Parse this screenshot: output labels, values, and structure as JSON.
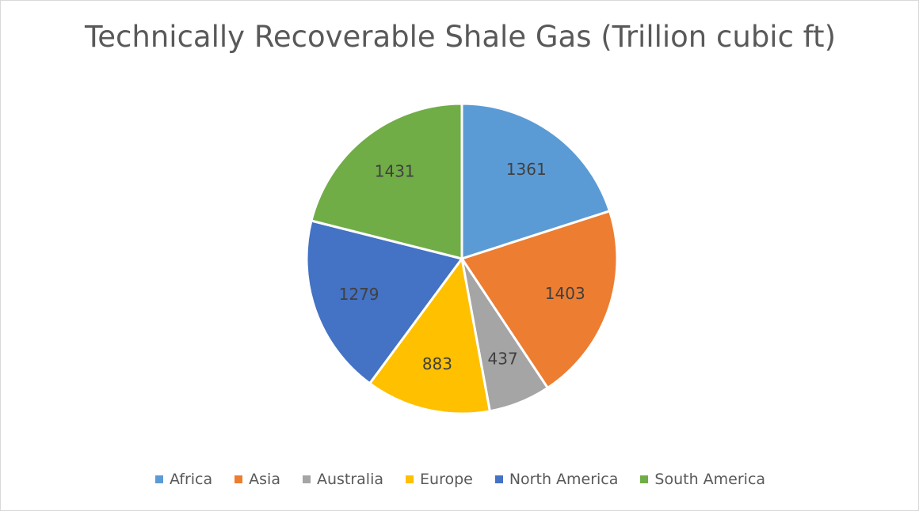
{
  "chart_data": {
    "type": "pie",
    "title": "Technically Recoverable Shale Gas (Trillion cubic ft)",
    "categories": [
      "Africa",
      "Asia",
      "Australia",
      "Europe",
      "North America",
      "South America"
    ],
    "values": [
      1361,
      1403,
      437,
      883,
      1279,
      1431
    ],
    "colors": [
      "#5b9bd5",
      "#ed7d31",
      "#a5a5a5",
      "#ffc000",
      "#4472c4",
      "#70ad47"
    ],
    "data_labels": [
      "1361",
      "1403",
      "437",
      "883",
      "1279",
      "1431"
    ],
    "legend_position": "bottom",
    "start_angle": "12 o'clock",
    "direction": "clockwise"
  }
}
